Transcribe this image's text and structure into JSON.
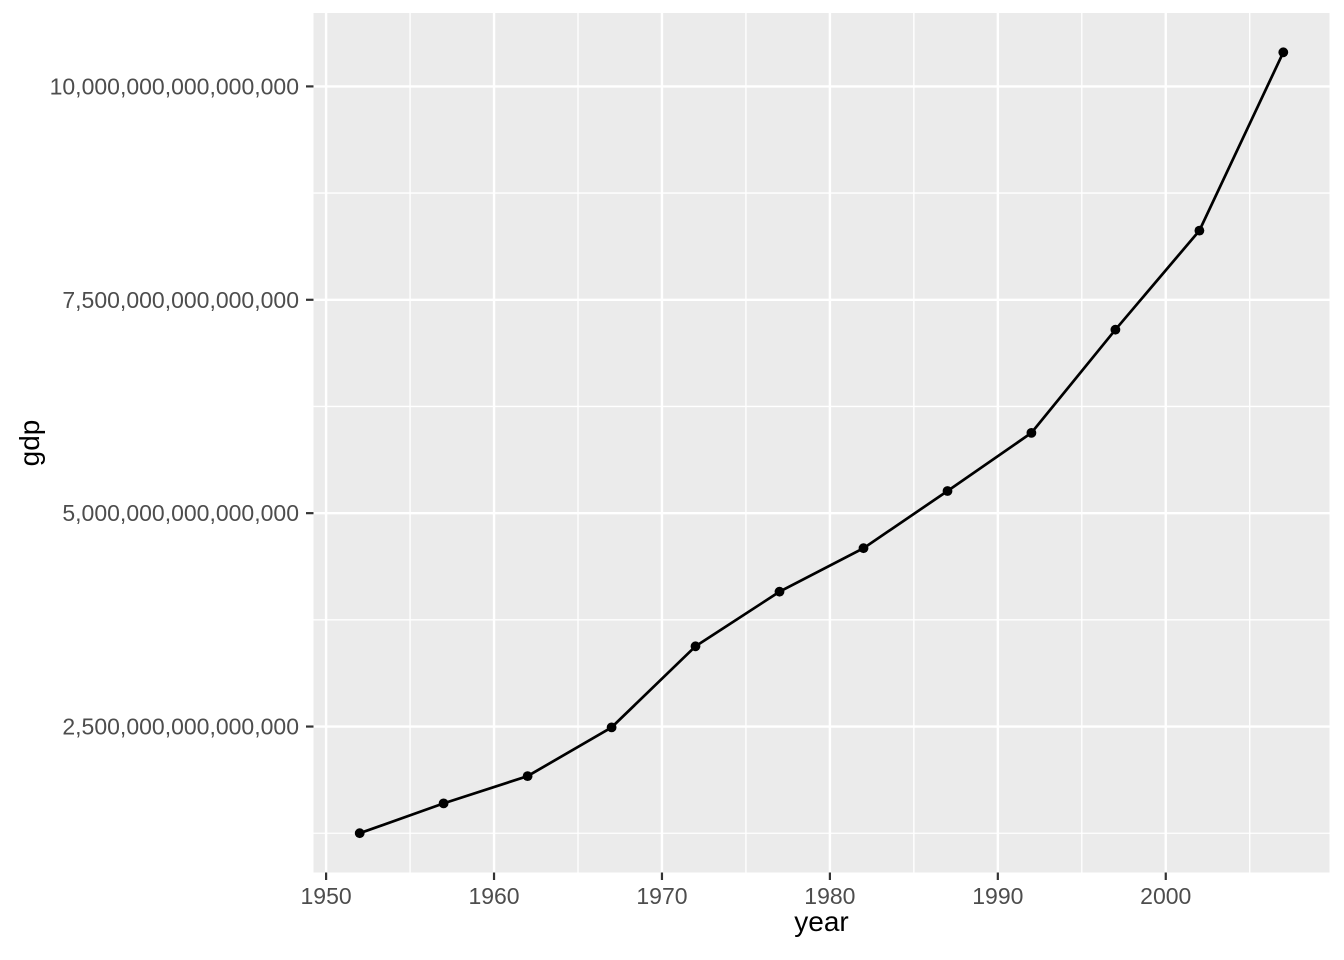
{
  "chart_data": {
    "type": "line",
    "title": "",
    "xlabel": "year",
    "ylabel": "gdp",
    "series_name": "gdp",
    "x": [
      1952,
      1957,
      1962,
      1967,
      1972,
      1977,
      1982,
      1987,
      1992,
      1997,
      2002,
      2007
    ],
    "y": [
      1250000000000000,
      1600000000000000,
      1920000000000000,
      2490000000000000,
      3440000000000000,
      4080000000000000,
      4590000000000000,
      5260000000000000,
      5940000000000000,
      7150000000000000,
      8310000000000000,
      10400000000000000
    ],
    "xlim": [
      1949.25,
      2009.75
    ],
    "ylim": [
      790000000000000,
      10860000000000000
    ],
    "x_major_ticks": [
      1950,
      1960,
      1970,
      1980,
      1990,
      2000
    ],
    "x_tick_labels": [
      "1950",
      "1960",
      "1970",
      "1980",
      "1990",
      "2000"
    ],
    "x_minor_ticks": [
      1955,
      1965,
      1975,
      1985,
      1995,
      2005
    ],
    "y_major_ticks": [
      2500000000000000,
      5000000000000000,
      7500000000000000,
      10000000000000000
    ],
    "y_tick_labels": [
      "2,500,000,000,000,000",
      "5,000,000,000,000,000",
      "7,500,000,000,000,000",
      "10,000,000,000,000,000"
    ],
    "y_minor_ticks": [
      1250000000000000,
      3750000000000000,
      6250000000000000,
      8750000000000000
    ],
    "grid": "major-and-minor",
    "legend": "none",
    "style": {
      "background": "#FFFFFF",
      "panel_bg": "#EBEBEB",
      "grid_color": "#FFFFFF",
      "line_color": "#000000",
      "point_color": "#000000",
      "tick_label_color": "#4D4D4D",
      "tick_mark_color": "#333333",
      "axis_title_color": "#000000"
    }
  }
}
